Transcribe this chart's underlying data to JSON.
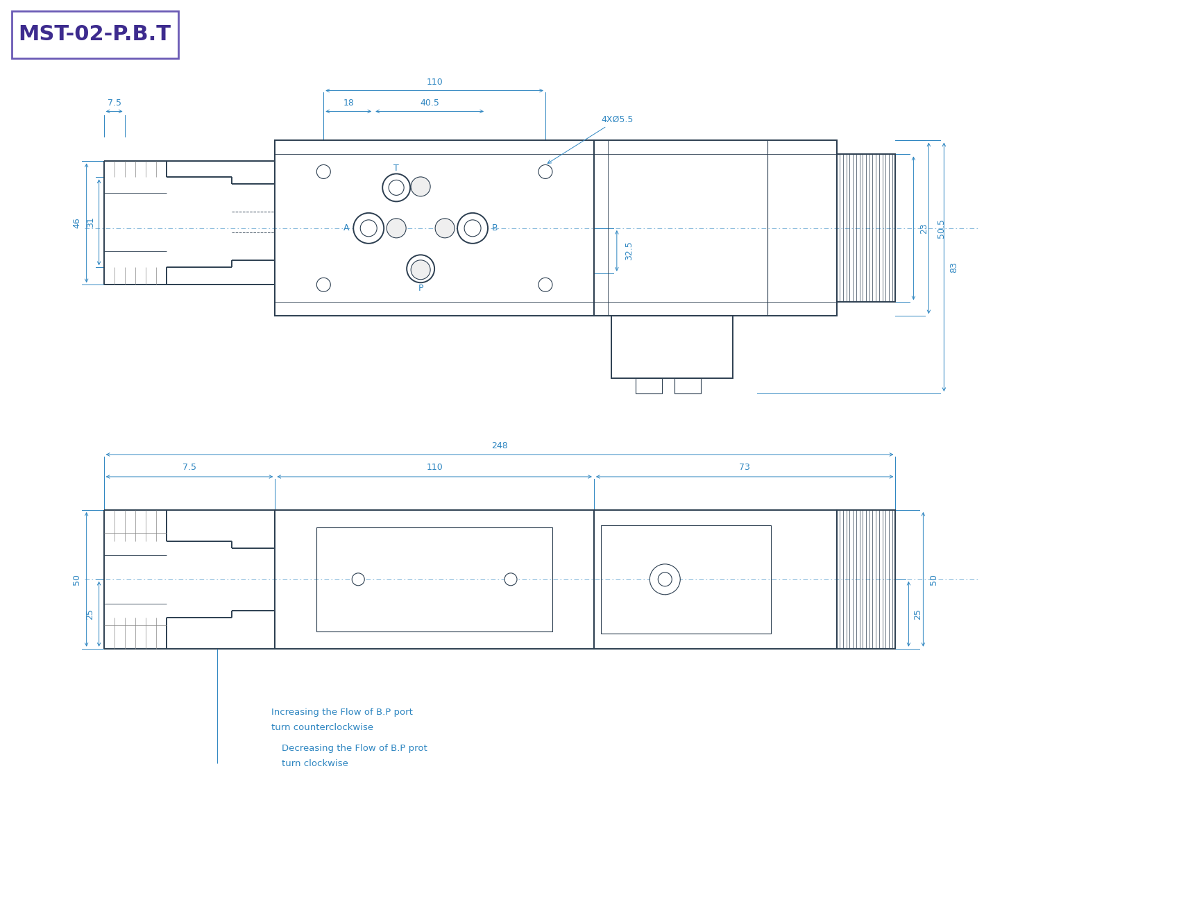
{
  "title": "MST-02-P.B.T",
  "title_color": "#3D2B8E",
  "title_box_color": "#6B5BB5",
  "bg_color": "#ffffff",
  "dim_color": "#2E86C1",
  "drawing_color": "#2C3E50",
  "light_gray": "#D0D0D0",
  "note1_line1": "Increasing the Flow of B.P port",
  "note1_line2": "turn counterclockwise",
  "note2_line1": "Decreasing the Flow of B.P prot",
  "note2_line2": "turn clockwise",
  "note_color": "#2E86C1"
}
